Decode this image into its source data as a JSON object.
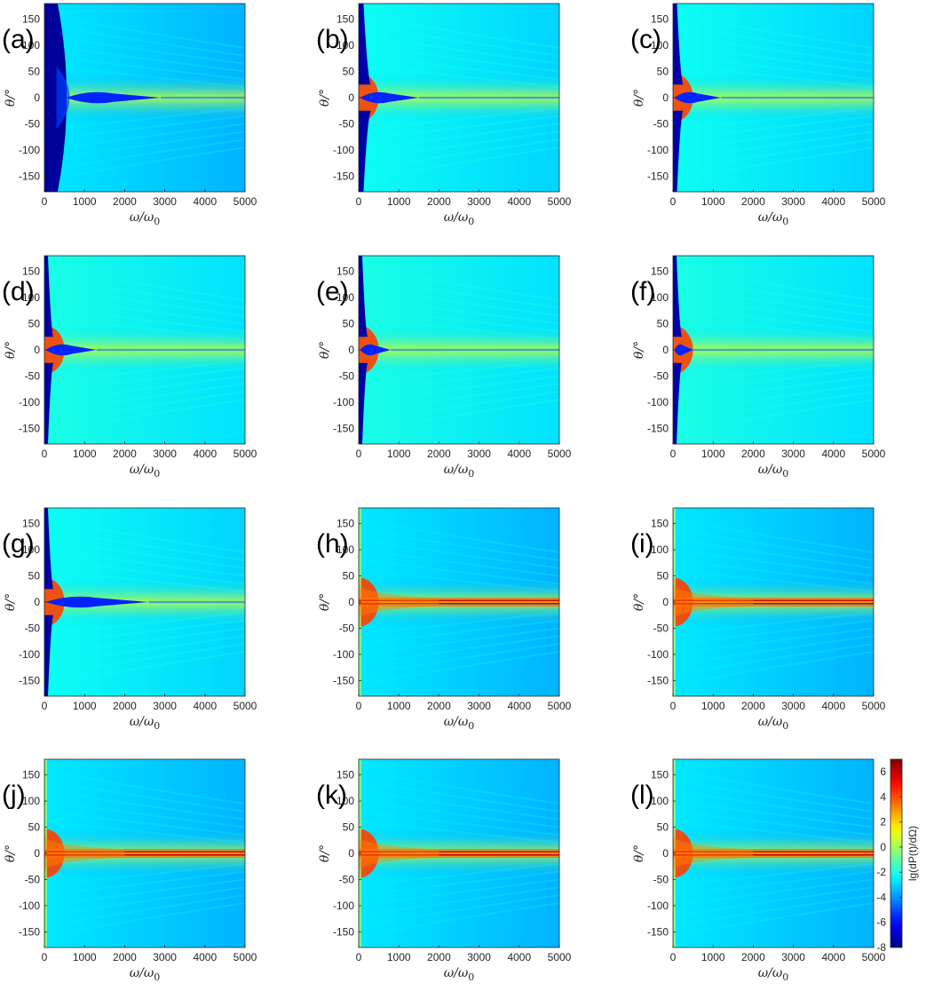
{
  "chart_data": {
    "type": "heatmap",
    "layout": "grid",
    "rows": 4,
    "cols": 3,
    "xlabel_main": "ω/ω",
    "xlabel_sub": "0",
    "ylabel": "θ/°",
    "xlim": [
      0,
      5000
    ],
    "ylim": [
      -180,
      180
    ],
    "xticks": [
      0,
      1000,
      2000,
      3000,
      4000,
      5000
    ],
    "yticks": [
      -150,
      -100,
      -50,
      0,
      50,
      100,
      150
    ],
    "colormap": "jet",
    "colorbar": {
      "label": "lg(dP(t)/dΩ)",
      "range": [
        -8,
        7
      ],
      "ticks": [
        -8,
        -6,
        -4,
        -2,
        0,
        2,
        4,
        6
      ]
    },
    "panels": [
      {
        "letter": "(a)",
        "dark_region_x": 600,
        "central_lobe_x": 2900,
        "ridge": false,
        "background": -3.5
      },
      {
        "letter": "(b)",
        "dark_region_x": 120,
        "central_lobe_x": 1500,
        "ridge": false,
        "background": -3.0
      },
      {
        "letter": "(c)",
        "dark_region_x": 100,
        "central_lobe_x": 1200,
        "ridge": false,
        "background": -3.0
      },
      {
        "letter": "(d)",
        "dark_region_x": 60,
        "central_lobe_x": 1300,
        "ridge": false,
        "background": -2.8
      },
      {
        "letter": "(e)",
        "dark_region_x": 50,
        "central_lobe_x": 800,
        "ridge": false,
        "background": -2.8
      },
      {
        "letter": "(f)",
        "dark_region_x": 40,
        "central_lobe_x": 500,
        "ridge": false,
        "background": -2.8
      },
      {
        "letter": "(g)",
        "dark_region_x": 20,
        "central_lobe_x": 2600,
        "ridge": false,
        "background": -3.0
      },
      {
        "letter": "(h)",
        "dark_region_x": 0,
        "central_lobe_x": 0,
        "ridge": true,
        "background": -3.5
      },
      {
        "letter": "(i)",
        "dark_region_x": 0,
        "central_lobe_x": 0,
        "ridge": true,
        "background": -3.5
      },
      {
        "letter": "(j)",
        "dark_region_x": 0,
        "central_lobe_x": 0,
        "ridge": true,
        "background": -3.5
      },
      {
        "letter": "(k)",
        "dark_region_x": 0,
        "central_lobe_x": 0,
        "ridge": true,
        "background": -3.5
      },
      {
        "letter": "(l)",
        "dark_region_x": 0,
        "central_lobe_x": 0,
        "ridge": true,
        "background": -3.5
      }
    ]
  }
}
